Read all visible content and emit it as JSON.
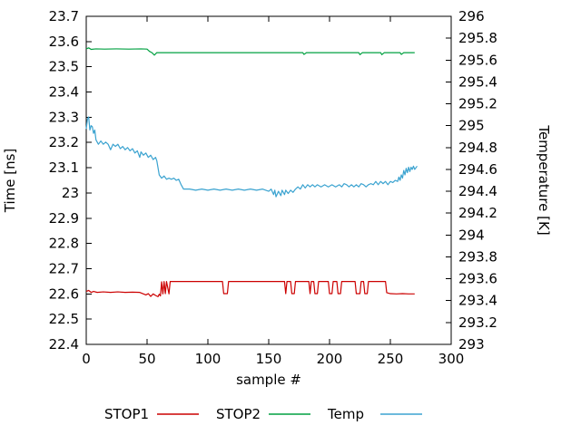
{
  "chart_data": {
    "type": "line",
    "title": "",
    "xlabel": "sample #",
    "ylabel": "Time [ns]",
    "y2label": "Temperature [K]",
    "xlim": [
      0,
      300
    ],
    "ylim": [
      22.4,
      23.7
    ],
    "y2lim": [
      293,
      296
    ],
    "grid": false,
    "legend_position": "bottom",
    "x_ticks": [
      "0",
      "50",
      "100",
      "150",
      "200",
      "250",
      "300"
    ],
    "y_ticks": [
      "23.7",
      "23.6",
      "23.5",
      "23.4",
      "23.3",
      "23.2",
      "23.1",
      "23",
      "22.9",
      "22.8",
      "22.7",
      "22.6",
      "22.5",
      "22.4"
    ],
    "y2_ticks": [
      "296",
      "295.8",
      "295.6",
      "295.4",
      "295.2",
      "295",
      "294.8",
      "294.6",
      "294.4",
      "294.2",
      "294",
      "293.8",
      "293.6",
      "293.4",
      "293.2",
      "293"
    ],
    "series": [
      {
        "name": "STOP1",
        "color": "#cc0000",
        "axis": "left",
        "points": [
          [
            0,
            22.61
          ],
          [
            2,
            22.614
          ],
          [
            4,
            22.606
          ],
          [
            6,
            22.61
          ],
          [
            9,
            22.606
          ],
          [
            14,
            22.608
          ],
          [
            20,
            22.606
          ],
          [
            26,
            22.608
          ],
          [
            32,
            22.606
          ],
          [
            38,
            22.607
          ],
          [
            44,
            22.606
          ],
          [
            47,
            22.6
          ],
          [
            49,
            22.596
          ],
          [
            51,
            22.601
          ],
          [
            53,
            22.59
          ],
          [
            55,
            22.6
          ],
          [
            57,
            22.594
          ],
          [
            59,
            22.589
          ],
          [
            60,
            22.599
          ],
          [
            61,
            22.592
          ],
          [
            62,
            22.648
          ],
          [
            63,
            22.6
          ],
          [
            64,
            22.649
          ],
          [
            65,
            22.601
          ],
          [
            66,
            22.649
          ],
          [
            68,
            22.6
          ],
          [
            69,
            22.649
          ],
          [
            112,
            22.649
          ],
          [
            113,
            22.601
          ],
          [
            116,
            22.601
          ],
          [
            117,
            22.649
          ],
          [
            163,
            22.649
          ],
          [
            164,
            22.601
          ],
          [
            165,
            22.649
          ],
          [
            168,
            22.649
          ],
          [
            169,
            22.601
          ],
          [
            171,
            22.601
          ],
          [
            172,
            22.649
          ],
          [
            183,
            22.649
          ],
          [
            184,
            22.601
          ],
          [
            185,
            22.649
          ],
          [
            187,
            22.649
          ],
          [
            188,
            22.601
          ],
          [
            190,
            22.601
          ],
          [
            191,
            22.649
          ],
          [
            199,
            22.649
          ],
          [
            200,
            22.601
          ],
          [
            202,
            22.601
          ],
          [
            203,
            22.649
          ],
          [
            206,
            22.649
          ],
          [
            207,
            22.601
          ],
          [
            209,
            22.601
          ],
          [
            210,
            22.649
          ],
          [
            221,
            22.649
          ],
          [
            222,
            22.601
          ],
          [
            225,
            22.601
          ],
          [
            226,
            22.649
          ],
          [
            228,
            22.649
          ],
          [
            229,
            22.601
          ],
          [
            231,
            22.601
          ],
          [
            232,
            22.649
          ],
          [
            246,
            22.649
          ],
          [
            247,
            22.605
          ],
          [
            250,
            22.601
          ],
          [
            255,
            22.6
          ],
          [
            260,
            22.601
          ],
          [
            265,
            22.6
          ],
          [
            270,
            22.6
          ]
        ]
      },
      {
        "name": "STOP2",
        "color": "#00a040",
        "axis": "left",
        "points": [
          [
            0,
            23.571
          ],
          [
            2,
            23.575
          ],
          [
            4,
            23.569
          ],
          [
            8,
            23.571
          ],
          [
            15,
            23.57
          ],
          [
            25,
            23.571
          ],
          [
            35,
            23.57
          ],
          [
            45,
            23.571
          ],
          [
            50,
            23.57
          ],
          [
            52,
            23.561
          ],
          [
            54,
            23.556
          ],
          [
            56,
            23.546
          ],
          [
            58,
            23.556
          ],
          [
            70,
            23.556
          ],
          [
            90,
            23.556
          ],
          [
            110,
            23.556
          ],
          [
            130,
            23.556
          ],
          [
            150,
            23.556
          ],
          [
            170,
            23.556
          ],
          [
            178,
            23.556
          ],
          [
            179,
            23.549
          ],
          [
            181,
            23.556
          ],
          [
            200,
            23.556
          ],
          [
            224,
            23.556
          ],
          [
            225,
            23.548
          ],
          [
            227,
            23.556
          ],
          [
            242,
            23.556
          ],
          [
            243,
            23.548
          ],
          [
            245,
            23.556
          ],
          [
            258,
            23.556
          ],
          [
            259,
            23.549
          ],
          [
            261,
            23.556
          ],
          [
            270,
            23.556
          ]
        ]
      },
      {
        "name": "Temp",
        "color": "#3ba3d0",
        "axis": "right",
        "points": [
          [
            0,
            294.97
          ],
          [
            1,
            295.06
          ],
          [
            2,
            295.08
          ],
          [
            3,
            294.96
          ],
          [
            4,
            295.0
          ],
          [
            5,
            294.99
          ],
          [
            6,
            294.93
          ],
          [
            7,
            294.96
          ],
          [
            8,
            294.87
          ],
          [
            10,
            294.83
          ],
          [
            12,
            294.86
          ],
          [
            14,
            294.83
          ],
          [
            16,
            294.85
          ],
          [
            18,
            294.83
          ],
          [
            20,
            294.78
          ],
          [
            22,
            294.83
          ],
          [
            24,
            294.81
          ],
          [
            26,
            294.83
          ],
          [
            28,
            294.79
          ],
          [
            30,
            294.81
          ],
          [
            32,
            294.78
          ],
          [
            34,
            294.8
          ],
          [
            36,
            294.77
          ],
          [
            38,
            294.79
          ],
          [
            40,
            294.75
          ],
          [
            42,
            294.77
          ],
          [
            44,
            294.71
          ],
          [
            45,
            294.76
          ],
          [
            47,
            294.73
          ],
          [
            49,
            294.75
          ],
          [
            51,
            294.71
          ],
          [
            53,
            294.73
          ],
          [
            55,
            294.69
          ],
          [
            57,
            294.71
          ],
          [
            58,
            294.68
          ],
          [
            60,
            294.55
          ],
          [
            62,
            294.52
          ],
          [
            64,
            294.54
          ],
          [
            66,
            294.51
          ],
          [
            68,
            294.52
          ],
          [
            70,
            294.51
          ],
          [
            72,
            294.52
          ],
          [
            74,
            294.5
          ],
          [
            76,
            294.51
          ],
          [
            78,
            294.46
          ],
          [
            80,
            294.42
          ],
          [
            85,
            294.42
          ],
          [
            90,
            294.41
          ],
          [
            95,
            294.42
          ],
          [
            100,
            294.41
          ],
          [
            105,
            294.42
          ],
          [
            110,
            294.41
          ],
          [
            115,
            294.42
          ],
          [
            120,
            294.41
          ],
          [
            125,
            294.42
          ],
          [
            130,
            294.41
          ],
          [
            135,
            294.42
          ],
          [
            140,
            294.41
          ],
          [
            145,
            294.42
          ],
          [
            150,
            294.4
          ],
          [
            152,
            294.42
          ],
          [
            154,
            294.37
          ],
          [
            155,
            294.41
          ],
          [
            156,
            294.35
          ],
          [
            158,
            294.4
          ],
          [
            160,
            294.36
          ],
          [
            161,
            294.41
          ],
          [
            163,
            294.37
          ],
          [
            164,
            294.41
          ],
          [
            166,
            294.38
          ],
          [
            168,
            294.41
          ],
          [
            170,
            294.39
          ],
          [
            172,
            294.42
          ],
          [
            174,
            294.44
          ],
          [
            176,
            294.42
          ],
          [
            178,
            294.46
          ],
          [
            180,
            294.43
          ],
          [
            182,
            294.46
          ],
          [
            184,
            294.44
          ],
          [
            186,
            294.46
          ],
          [
            188,
            294.44
          ],
          [
            190,
            294.46
          ],
          [
            193,
            294.44
          ],
          [
            196,
            294.46
          ],
          [
            199,
            294.44
          ],
          [
            202,
            294.46
          ],
          [
            205,
            294.44
          ],
          [
            208,
            294.46
          ],
          [
            210,
            294.44
          ],
          [
            212,
            294.47
          ],
          [
            214,
            294.46
          ],
          [
            216,
            294.44
          ],
          [
            218,
            294.46
          ],
          [
            220,
            294.44
          ],
          [
            222,
            294.46
          ],
          [
            224,
            294.44
          ],
          [
            226,
            294.47
          ],
          [
            228,
            294.46
          ],
          [
            230,
            294.44
          ],
          [
            232,
            294.46
          ],
          [
            234,
            294.47
          ],
          [
            236,
            294.46
          ],
          [
            238,
            294.49
          ],
          [
            240,
            294.46
          ],
          [
            242,
            294.49
          ],
          [
            244,
            294.47
          ],
          [
            246,
            294.49
          ],
          [
            248,
            294.46
          ],
          [
            250,
            294.49
          ],
          [
            252,
            294.48
          ],
          [
            254,
            294.5
          ],
          [
            256,
            294.49
          ],
          [
            257,
            294.53
          ],
          [
            258,
            294.5
          ],
          [
            259,
            294.55
          ],
          [
            260,
            294.52
          ],
          [
            261,
            294.59
          ],
          [
            262,
            294.55
          ],
          [
            263,
            294.61
          ],
          [
            264,
            294.57
          ],
          [
            265,
            294.62
          ],
          [
            266,
            294.58
          ],
          [
            267,
            294.62
          ],
          [
            268,
            294.6
          ],
          [
            269,
            294.63
          ],
          [
            270,
            294.6
          ],
          [
            272,
            294.63
          ]
        ]
      }
    ]
  }
}
